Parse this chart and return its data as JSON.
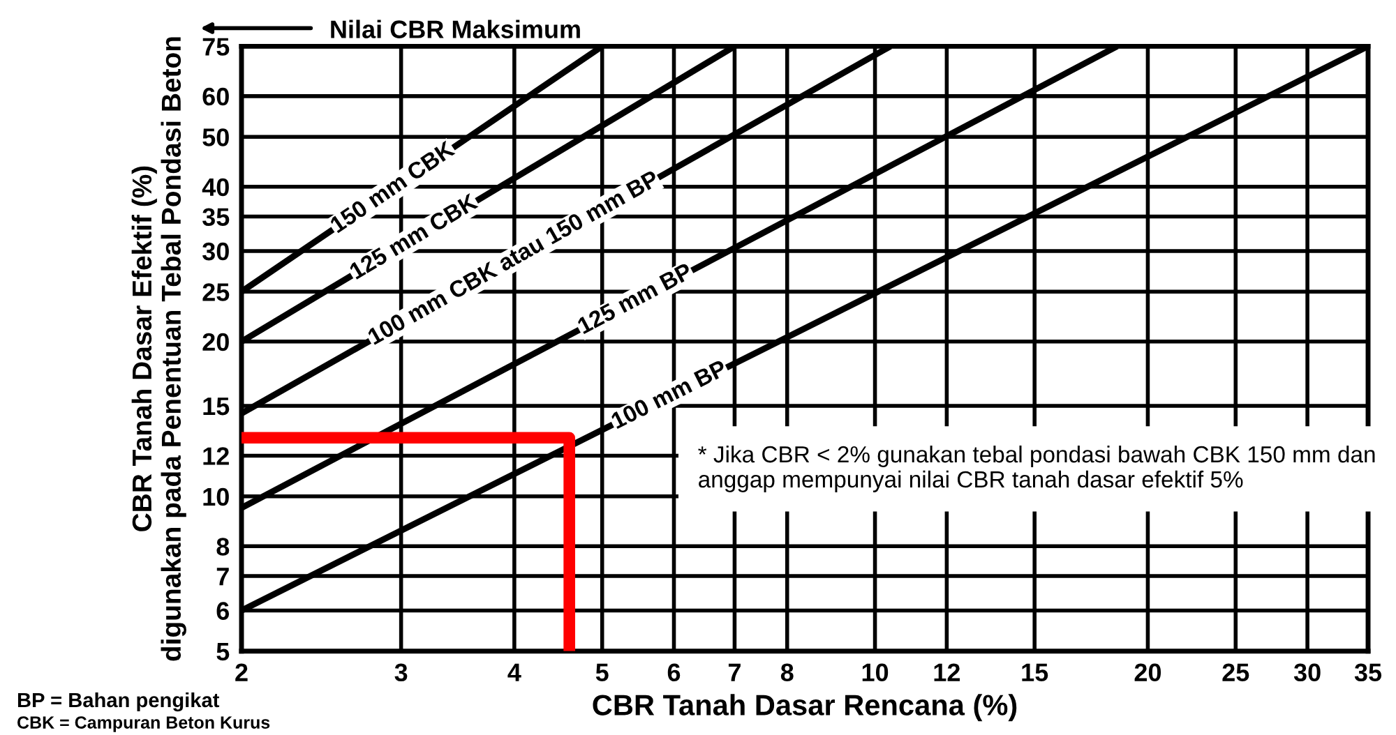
{
  "chart_data": {
    "type": "line",
    "xlabel": "CBR Tanah Dasar Rencana (%)",
    "ylabel": "CBR Tanah Dasar Efektif (%)\ndigunakan pada Penentuan Tebal Pondasi Beton",
    "log": "xy",
    "grid": true,
    "legend": false,
    "marker": "none",
    "line_style": "solid",
    "xlim": [
      2,
      35
    ],
    "ylim": [
      5,
      75
    ],
    "xticks": [
      2,
      3,
      4,
      5,
      6,
      7,
      8,
      10,
      12,
      15,
      20,
      25,
      30,
      35
    ],
    "yticks": [
      5,
      6,
      7,
      8,
      10,
      12,
      15,
      20,
      25,
      30,
      35,
      40,
      50,
      60,
      75
    ],
    "series": [
      {
        "name": "150 mm CBK",
        "color": "#000000",
        "x": [
          2,
          5
        ],
        "values": [
          25,
          75
        ]
      },
      {
        "name": "125 mm CBK",
        "color": "#000000",
        "x": [
          2,
          7
        ],
        "values": [
          20,
          75
        ]
      },
      {
        "name": "100 mm CBK atau 150 mm BP",
        "color": "#000000",
        "x": [
          2,
          10.4
        ],
        "values": [
          14.5,
          75
        ]
      },
      {
        "name": "125 mm BP",
        "color": "#000000",
        "x": [
          2,
          18.5
        ],
        "values": [
          9.5,
          75
        ]
      },
      {
        "name": "100 mm BP",
        "color": "#000000",
        "x": [
          2,
          35
        ],
        "values": [
          6,
          75
        ]
      },
      {
        "color": "#ff0000",
        "x": [
          2,
          4.6,
          4.6
        ],
        "values": [
          13,
          13,
          5
        ]
      }
    ],
    "annotations": [
      "Nilai CBR Maksimum",
      "* Jika CBR < 2% gunakan tebal pondasi bawah CBK 150 mm dan anggap mempunyai nilai CBR tanah dasar efektif 5%",
      "BP = Bahan pengikat",
      "CBK = Campuran Beton Kurus"
    ]
  }
}
